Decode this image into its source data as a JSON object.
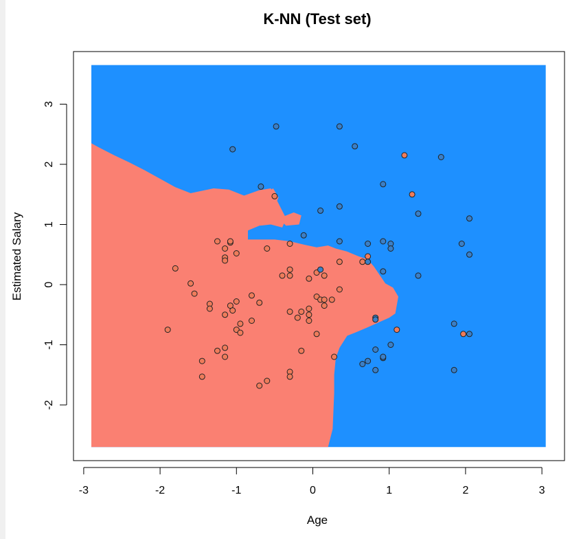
{
  "chart_data": {
    "type": "scatter",
    "title": "K-NN (Test set)",
    "xlabel": "Age",
    "ylabel": "Estimated Salary",
    "xlim": [
      -3.0,
      3.0
    ],
    "ylim": [
      -2.7,
      3.65
    ],
    "xticks": [
      -3,
      -2,
      -1,
      0,
      1,
      2,
      3
    ],
    "yticks": [
      -2,
      -1,
      0,
      1,
      2,
      3
    ],
    "grid": false,
    "colors": {
      "region_class0": "#FA8072",
      "region_class1": "#1E90FF",
      "point_class0": "#EE7C5B",
      "point_class1": "#3B7FC6"
    },
    "decision_region_class0": [
      [
        -2.9,
        2.35
      ],
      [
        -2.8,
        2.28
      ],
      [
        -2.6,
        2.15
      ],
      [
        -2.4,
        2.03
      ],
      [
        -2.2,
        1.9
      ],
      [
        -2.0,
        1.76
      ],
      [
        -1.8,
        1.62
      ],
      [
        -1.6,
        1.52
      ],
      [
        -1.3,
        1.6
      ],
      [
        -1.1,
        1.58
      ],
      [
        -0.9,
        1.48
      ],
      [
        -0.7,
        1.57
      ],
      [
        -0.55,
        1.6
      ],
      [
        -0.45,
        1.35
      ],
      [
        -0.35,
        1.1
      ],
      [
        -0.4,
        0.95
      ],
      [
        -0.55,
        1.0
      ],
      [
        -0.7,
        0.98
      ],
      [
        -0.85,
        0.9
      ],
      [
        -0.85,
        0.75
      ],
      [
        -0.5,
        0.75
      ],
      [
        -0.3,
        0.72
      ],
      [
        -0.1,
        0.66
      ],
      [
        0.05,
        0.62
      ],
      [
        0.2,
        0.65
      ],
      [
        0.3,
        0.6
      ],
      [
        0.45,
        0.55
      ],
      [
        0.6,
        0.47
      ],
      [
        0.72,
        0.42
      ],
      [
        0.8,
        0.3
      ],
      [
        0.88,
        0.15
      ],
      [
        0.95,
        0.02
      ],
      [
        1.05,
        -0.05
      ],
      [
        1.12,
        -0.2
      ],
      [
        1.08,
        -0.48
      ],
      [
        1.0,
        -0.55
      ],
      [
        0.7,
        -0.72
      ],
      [
        0.55,
        -0.8
      ],
      [
        0.45,
        -0.85
      ],
      [
        0.35,
        -1.05
      ],
      [
        0.3,
        -1.22
      ],
      [
        0.28,
        -1.5
      ],
      [
        0.28,
        -1.8
      ],
      [
        0.27,
        -2.1
      ],
      [
        0.26,
        -2.4
      ],
      [
        0.2,
        -2.7
      ],
      [
        -2.9,
        -2.7
      ]
    ],
    "decision_island_class0": [
      [
        -0.62,
        1.52
      ],
      [
        -0.52,
        1.6
      ],
      [
        -0.45,
        1.45
      ],
      [
        -0.48,
        1.35
      ],
      [
        -0.6,
        1.4
      ]
    ],
    "decision_island_class0_b": [
      [
        -0.45,
        1.1
      ],
      [
        -0.25,
        1.2
      ],
      [
        -0.15,
        1.15
      ],
      [
        -0.18,
        1.0
      ],
      [
        -0.35,
        0.98
      ]
    ],
    "series": [
      {
        "class": 0,
        "points": [
          [
            -1.9,
            -0.75
          ],
          [
            -1.8,
            0.27
          ],
          [
            -1.6,
            0.02
          ],
          [
            -1.55,
            -0.15
          ],
          [
            -1.45,
            -1.27
          ],
          [
            -1.45,
            -1.53
          ],
          [
            -1.35,
            -0.32
          ],
          [
            -1.35,
            -0.4
          ],
          [
            -1.25,
            0.72
          ],
          [
            -1.25,
            -1.1
          ],
          [
            -1.15,
            0.6
          ],
          [
            -1.15,
            0.45
          ],
          [
            -1.15,
            0.4
          ],
          [
            -1.15,
            -0.5
          ],
          [
            -1.15,
            -1.05
          ],
          [
            -1.15,
            -1.2
          ],
          [
            -1.08,
            0.7
          ],
          [
            -1.08,
            0.72
          ],
          [
            -1.08,
            -0.35
          ],
          [
            -1.05,
            -0.43
          ],
          [
            -1.0,
            0.52
          ],
          [
            -1.0,
            -0.28
          ],
          [
            -1.0,
            -0.75
          ],
          [
            -0.95,
            -0.65
          ],
          [
            -0.95,
            -0.8
          ],
          [
            -0.8,
            -0.18
          ],
          [
            -0.8,
            -0.6
          ],
          [
            -0.7,
            -0.3
          ],
          [
            -0.7,
            -1.68
          ],
          [
            -0.6,
            0.6
          ],
          [
            -0.6,
            -1.6
          ],
          [
            -0.5,
            1.47
          ],
          [
            -0.4,
            0.15
          ],
          [
            -0.3,
            0.25
          ],
          [
            -0.3,
            0.15
          ],
          [
            -0.3,
            0.68
          ],
          [
            -0.3,
            -0.45
          ],
          [
            -0.3,
            -1.45
          ],
          [
            -0.3,
            -1.53
          ],
          [
            -0.2,
            -0.55
          ],
          [
            -0.15,
            -0.45
          ],
          [
            -0.15,
            -1.1
          ],
          [
            -0.05,
            0.1
          ],
          [
            -0.05,
            -0.4
          ],
          [
            -0.05,
            -0.5
          ],
          [
            -0.05,
            -0.6
          ],
          [
            0.05,
            0.2
          ],
          [
            0.05,
            -0.2
          ],
          [
            0.05,
            -0.82
          ],
          [
            0.1,
            -0.25
          ],
          [
            0.15,
            0.15
          ],
          [
            0.15,
            -0.25
          ],
          [
            0.15,
            -0.35
          ],
          [
            0.25,
            -0.25
          ],
          [
            0.28,
            -1.2
          ],
          [
            0.35,
            -0.08
          ],
          [
            0.35,
            0.38
          ],
          [
            0.65,
            0.38
          ],
          [
            0.72,
            0.47
          ],
          [
            1.1,
            -0.75
          ],
          [
            1.2,
            2.15
          ],
          [
            1.3,
            1.5
          ],
          [
            1.97,
            -0.82
          ]
        ]
      },
      {
        "class": 1,
        "points": [
          [
            -1.05,
            2.25
          ],
          [
            -0.68,
            1.63
          ],
          [
            -0.48,
            2.63
          ],
          [
            -0.12,
            0.82
          ],
          [
            0.1,
            0.25
          ],
          [
            0.1,
            1.23
          ],
          [
            0.35,
            2.63
          ],
          [
            0.35,
            1.3
          ],
          [
            0.35,
            0.72
          ],
          [
            0.55,
            2.3
          ],
          [
            0.65,
            -1.32
          ],
          [
            0.72,
            0.68
          ],
          [
            0.72,
            0.38
          ],
          [
            0.72,
            -1.27
          ],
          [
            0.82,
            -1.08
          ],
          [
            0.82,
            -0.55
          ],
          [
            0.82,
            -0.58
          ],
          [
            0.82,
            -1.42
          ],
          [
            0.92,
            0.72
          ],
          [
            0.92,
            0.22
          ],
          [
            0.92,
            -1.22
          ],
          [
            0.92,
            -1.2
          ],
          [
            0.92,
            1.67
          ],
          [
            1.02,
            0.68
          ],
          [
            1.02,
            0.6
          ],
          [
            1.02,
            -1.0
          ],
          [
            1.38,
            1.18
          ],
          [
            1.38,
            0.15
          ],
          [
            1.68,
            2.12
          ],
          [
            1.85,
            -0.65
          ],
          [
            1.85,
            -1.42
          ],
          [
            1.95,
            0.68
          ],
          [
            2.05,
            1.1
          ],
          [
            2.05,
            0.5
          ],
          [
            2.05,
            -0.82
          ]
        ]
      }
    ]
  }
}
